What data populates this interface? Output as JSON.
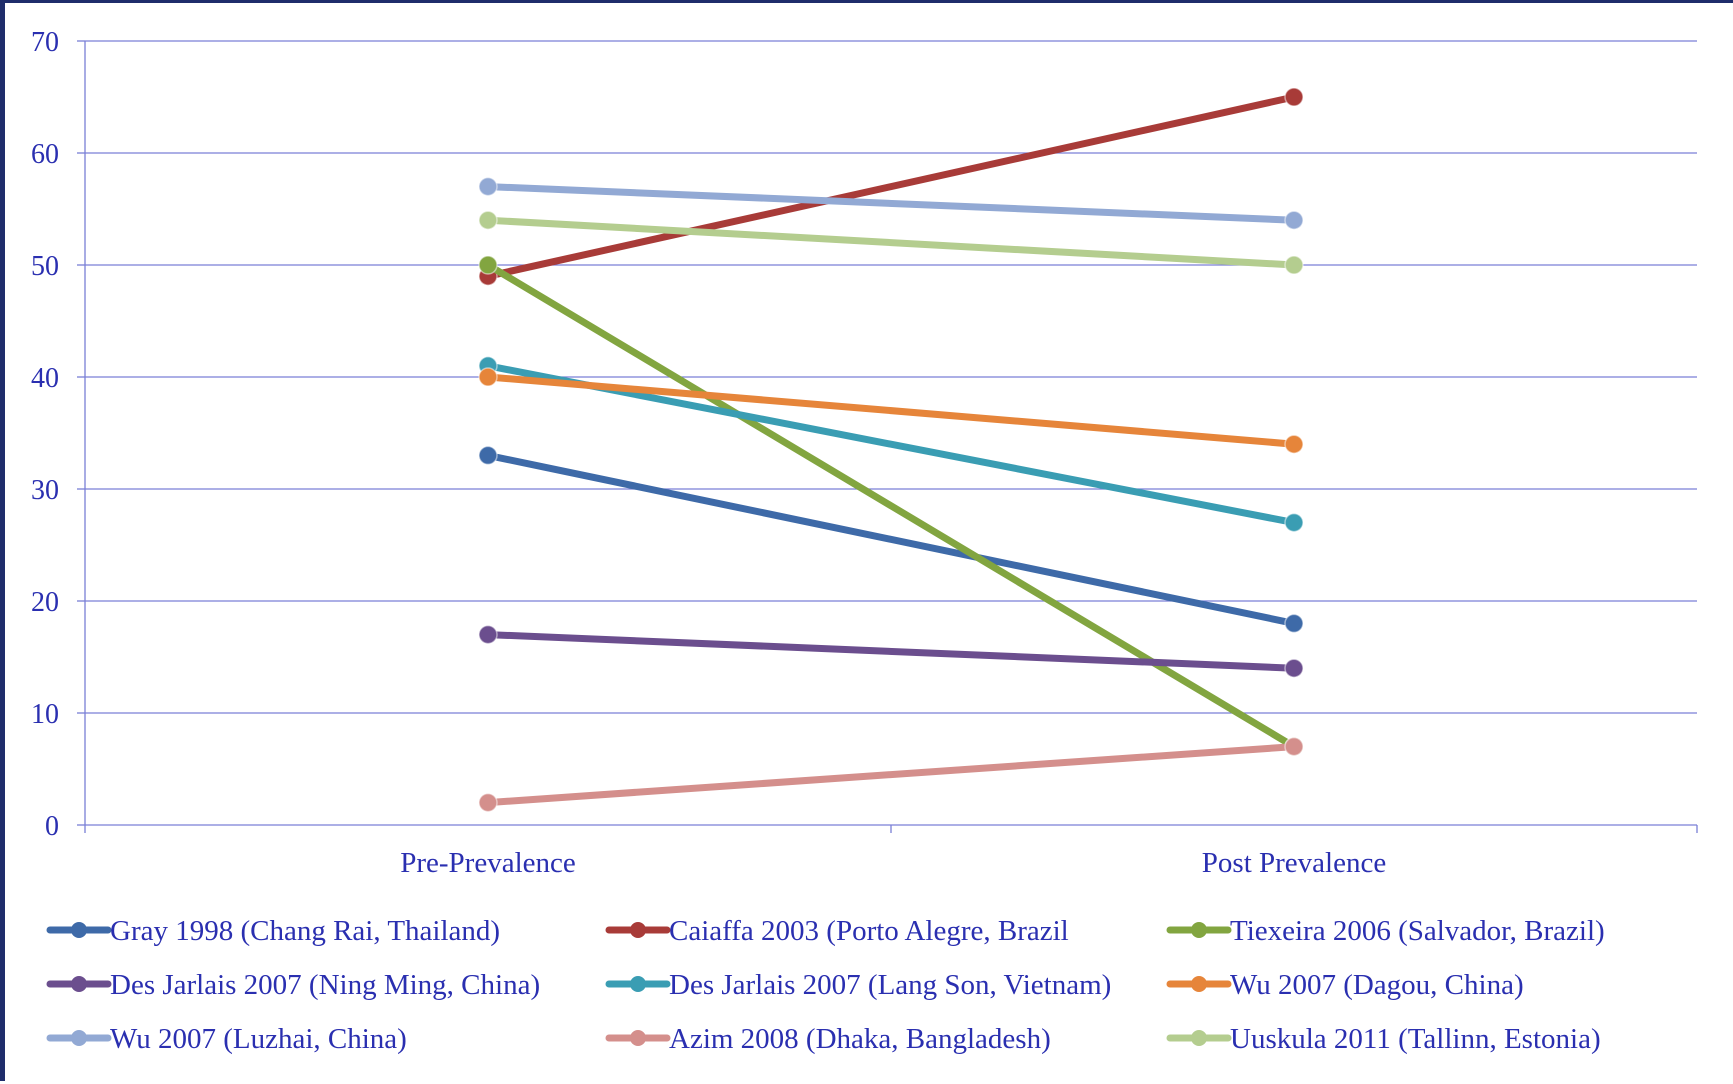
{
  "chart_data": {
    "type": "line",
    "title": "",
    "xlabel": "",
    "ylabel": "",
    "categories": [
      "Pre-Prevalence",
      "Post Prevalence"
    ],
    "ylim": [
      0,
      70
    ],
    "yticks": [
      0,
      10,
      20,
      30,
      40,
      50,
      60,
      70
    ],
    "grid": "horizontal",
    "legend_position": "bottom",
    "series": [
      {
        "name": "Gray 1998 (Chang Rai, Thailand)",
        "values": [
          33,
          18
        ],
        "color": "#3e6aa8"
      },
      {
        "name": "Caiaffa 2003 (Porto Alegre, Brazil",
        "values": [
          49,
          65
        ],
        "color": "#a83b38"
      },
      {
        "name": "Tiexeira 2006 (Salvador, Brazil)",
        "values": [
          50,
          7
        ],
        "color": "#82a540"
      },
      {
        "name": "Des Jarlais 2007 (Ning Ming,  China)",
        "values": [
          17,
          14
        ],
        "color": "#6b4e8e"
      },
      {
        "name": "Des Jarlais 2007 (Lang Son, Vietnam)",
        "values": [
          41,
          27
        ],
        "color": "#3a9db3"
      },
      {
        "name": "Wu 2007 (Dagou, China)",
        "values": [
          40,
          34
        ],
        "color": "#e6853a"
      },
      {
        "name": "Wu 2007 (Luzhai, China)",
        "values": [
          57,
          54
        ],
        "color": "#92a9d4"
      },
      {
        "name": "Azim 2008 (Dhaka, Bangladesh)",
        "values": [
          2,
          7
        ],
        "color": "#d48f8c"
      },
      {
        "name": "Uuskula 2011 (Tallinn, Estonia)",
        "values": [
          54,
          50
        ],
        "color": "#b4cd8f"
      }
    ]
  }
}
